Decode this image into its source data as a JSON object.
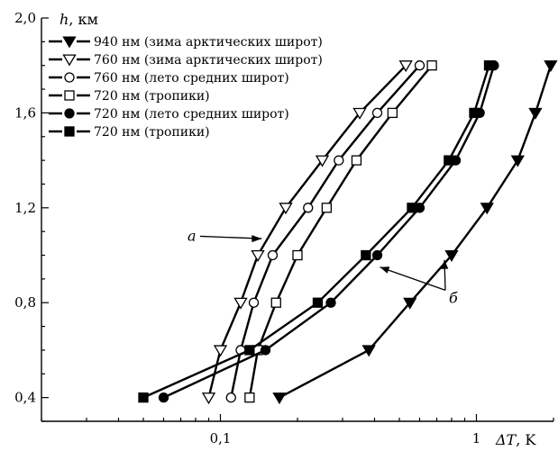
{
  "chart_data": {
    "type": "line",
    "title": "",
    "xlabel": {
      "symbol": "ΔT",
      "unit": ", K",
      "text": "ΔT, K"
    },
    "ylabel": {
      "symbol": "h",
      "unit": ", км",
      "text": "h, км"
    },
    "x_scale": "log",
    "xlim": [
      0.02,
      2.0
    ],
    "ylim": [
      0.3,
      2.0
    ],
    "x_ticks": [
      {
        "value": 0.1,
        "label": "0,1"
      },
      {
        "value": 1,
        "label": "1"
      }
    ],
    "y_ticks": [
      {
        "value": 0.4,
        "label": "0,4"
      },
      {
        "value": 0.8,
        "label": "0,8"
      },
      {
        "value": 1.2,
        "label": "1,2"
      },
      {
        "value": 1.6,
        "label": "1,6"
      },
      {
        "value": 2.0,
        "label": "2,0"
      }
    ],
    "grid": false,
    "legend_position": "top-left",
    "series": [
      {
        "name": "940 нм (зима арктических широт)",
        "marker": "triangle-down-filled",
        "points": [
          [
            0.17,
            0.4
          ],
          [
            0.38,
            0.6
          ],
          [
            0.55,
            0.8
          ],
          [
            0.8,
            1.0
          ],
          [
            1.1,
            1.2
          ],
          [
            1.45,
            1.4
          ],
          [
            1.7,
            1.6
          ],
          [
            1.95,
            1.8
          ]
        ]
      },
      {
        "name": "760 нм (зима арктических широт)",
        "marker": "triangle-down-open",
        "points": [
          [
            0.09,
            0.4
          ],
          [
            0.1,
            0.6
          ],
          [
            0.12,
            0.8
          ],
          [
            0.14,
            1.0
          ],
          [
            0.18,
            1.2
          ],
          [
            0.25,
            1.4
          ],
          [
            0.35,
            1.6
          ],
          [
            0.53,
            1.8
          ]
        ]
      },
      {
        "name": "760 нм (лето средних широт)",
        "marker": "circle-open",
        "points": [
          [
            0.11,
            0.4
          ],
          [
            0.12,
            0.6
          ],
          [
            0.135,
            0.8
          ],
          [
            0.16,
            1.0
          ],
          [
            0.22,
            1.2
          ],
          [
            0.29,
            1.4
          ],
          [
            0.41,
            1.6
          ],
          [
            0.6,
            1.8
          ]
        ]
      },
      {
        "name": "720 нм (тропики)",
        "marker": "square-open",
        "points": [
          [
            0.13,
            0.4
          ],
          [
            0.14,
            0.6
          ],
          [
            0.165,
            0.8
          ],
          [
            0.2,
            1.0
          ],
          [
            0.26,
            1.2
          ],
          [
            0.34,
            1.4
          ],
          [
            0.47,
            1.6
          ],
          [
            0.67,
            1.8
          ]
        ]
      },
      {
        "name": "720 нм (лето средних широт)",
        "marker": "circle-filled",
        "points": [
          [
            0.06,
            0.4
          ],
          [
            0.15,
            0.6
          ],
          [
            0.27,
            0.8
          ],
          [
            0.41,
            1.0
          ],
          [
            0.6,
            1.2
          ],
          [
            0.83,
            1.4
          ],
          [
            1.03,
            1.6
          ],
          [
            1.17,
            1.8
          ]
        ]
      },
      {
        "name": "720 нм (тропики)",
        "marker": "square-filled",
        "points": [
          [
            0.05,
            0.4
          ],
          [
            0.13,
            0.6
          ],
          [
            0.24,
            0.8
          ],
          [
            0.37,
            1.0
          ],
          [
            0.56,
            1.2
          ],
          [
            0.78,
            1.4
          ],
          [
            0.98,
            1.6
          ],
          [
            1.12,
            1.8
          ]
        ]
      }
    ],
    "annotations": [
      {
        "label": "a",
        "target_series_group": "760/720 нм тропики (open markers)"
      },
      {
        "label": "б",
        "target_series_group": "720/940 нм (filled markers)"
      }
    ]
  }
}
